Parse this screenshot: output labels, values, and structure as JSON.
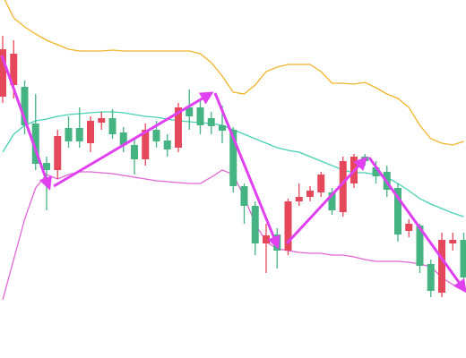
{
  "chart_data": {
    "type": "candlestick",
    "ylim": [
      0,
      400
    ],
    "up_color": "#46b383",
    "down_color": "#e5485b",
    "open": [
      345,
      340,
      260,
      217,
      210,
      248,
      242,
      242,
      265,
      268,
      250,
      238,
      222,
      255,
      242,
      233,
      280,
      270,
      260,
      259,
      254,
      192,
      170,
      128,
      137,
      120,
      175,
      180,
      187,
      205,
      165,
      220,
      225,
      220,
      203,
      188,
      138,
      150,
      103,
      75,
      132,
      132,
      90
    ],
    "close": [
      292,
      305,
      303,
      262,
      218,
      210,
      257,
      257,
      240,
      263,
      268,
      252,
      238,
      222,
      255,
      243,
      235,
      280,
      280,
      268,
      260,
      255,
      192,
      170,
      128,
      138,
      120,
      175,
      180,
      185,
      185,
      163,
      195,
      225,
      213,
      208,
      190,
      142,
      148,
      105,
      73,
      128,
      132
    ],
    "high": [
      360,
      355,
      310,
      295,
      225,
      255,
      270,
      280,
      270,
      275,
      278,
      258,
      245,
      262,
      265,
      250,
      285,
      300,
      290,
      275,
      282,
      258,
      195,
      175,
      150,
      145,
      178,
      195,
      192,
      208,
      190,
      225,
      228,
      228,
      220,
      215,
      195,
      155,
      150,
      110,
      140,
      140,
      140
    ],
    "low": [
      285,
      290,
      250,
      210,
      165,
      200,
      235,
      235,
      230,
      255,
      245,
      230,
      205,
      215,
      235,
      225,
      230,
      255,
      250,
      250,
      240,
      185,
      150,
      115,
      95,
      100,
      115,
      170,
      175,
      180,
      160,
      158,
      190,
      215,
      195,
      180,
      130,
      135,
      95,
      68,
      68,
      120,
      85
    ],
    "bands": [
      {
        "color": "#f0b429",
        "values": [
          405,
          380,
          370,
          362,
          355,
          350,
          345,
          343,
          343,
          343,
          344,
          343,
          343,
          343,
          343,
          343,
          343,
          343,
          340,
          330,
          315,
          297,
          295,
          305,
          320,
          325,
          328,
          328,
          328,
          320,
          307,
          307,
          306,
          308,
          302,
          295,
          290,
          280,
          260,
          245,
          240,
          238,
          242
        ]
      },
      {
        "color": "#46d2b4",
        "values": [
          230,
          250,
          260,
          265,
          267,
          270,
          272,
          273,
          274,
          275,
          275,
          274,
          272,
          270,
          269,
          267,
          265,
          264,
          263,
          262,
          260,
          255,
          250,
          245,
          240,
          235,
          232,
          230,
          225,
          220,
          215,
          210,
          207,
          207,
          205,
          202,
          195,
          187,
          178,
          172,
          167,
          162,
          158
        ]
      },
      {
        "color": "#e266d6",
        "values": [
          65,
          110,
          155,
          190,
          205,
          200,
          205,
          208,
          208,
          207,
          206,
          204,
          202,
          200,
          198,
          197,
          196,
          195,
          195,
          202,
          210,
          205,
          180,
          150,
          130,
          122,
          120,
          118,
          117,
          117,
          115,
          115,
          113,
          110,
          108,
          108,
          108,
          107,
          105,
          102,
          90,
          82,
          80
        ]
      }
    ]
  }
}
